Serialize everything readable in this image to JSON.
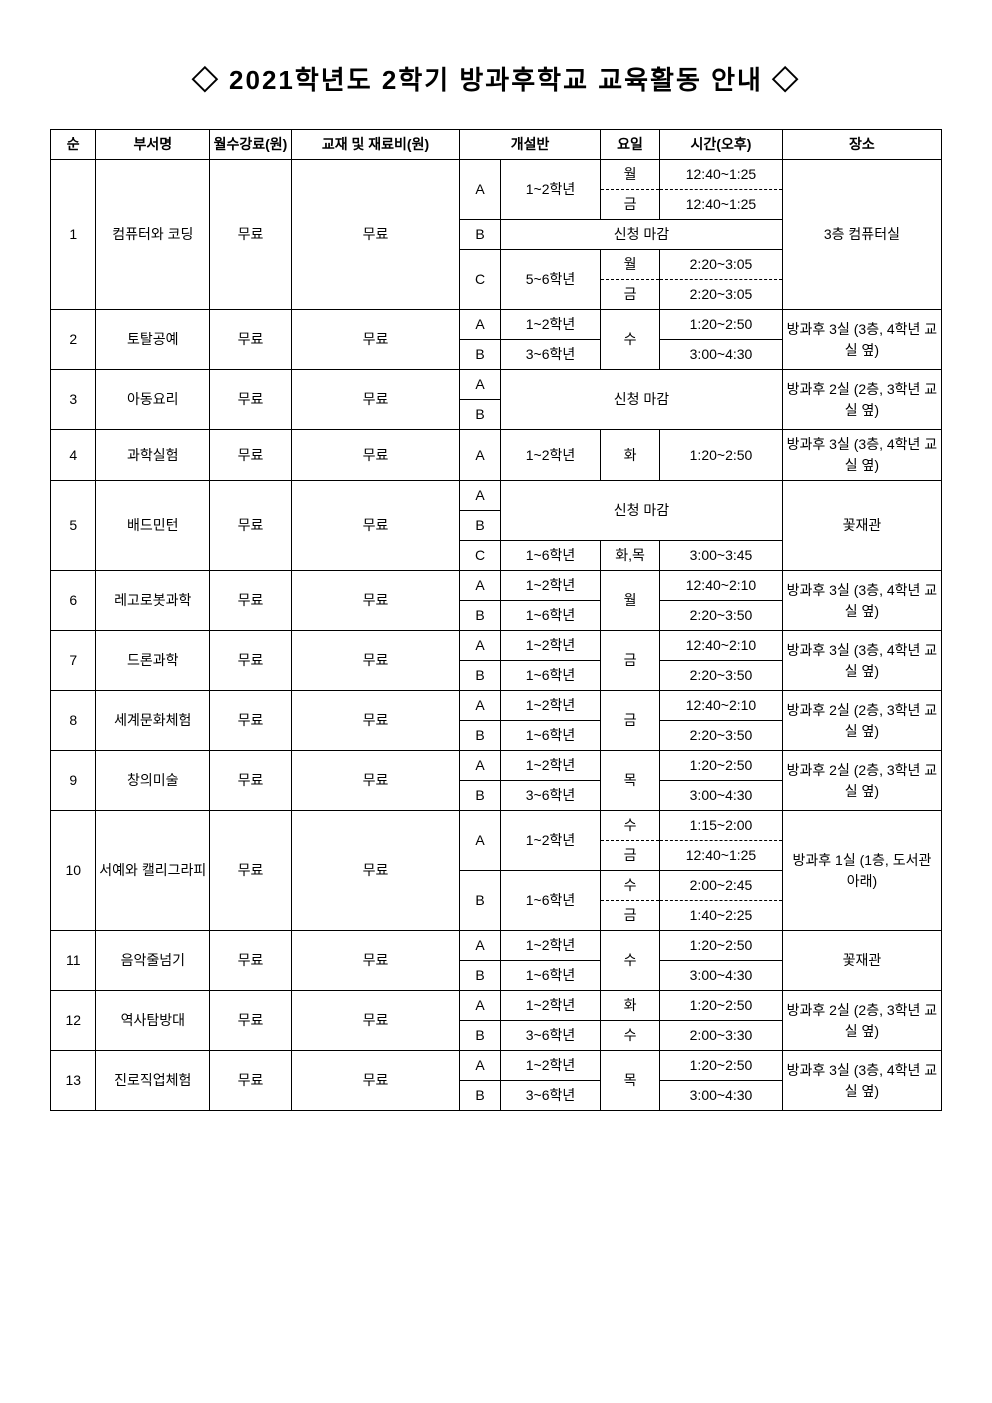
{
  "title": "◇ 2021학년도 2학기 방과후학교 교육활동 안내 ◇",
  "headers": {
    "num": "순",
    "dept": "부서명",
    "monthly_fee": "월수강료(원)",
    "material_fee": "교재 및 재료비(원)",
    "class_open": "개설반",
    "day": "요일",
    "time_pm": "시간(오후)",
    "place": "장소"
  },
  "free": "무료",
  "closed": "신청 마감",
  "rows": {
    "r1": {
      "num": "1",
      "name": "컴퓨터와\n코딩",
      "place": "3층 컴퓨터실",
      "A": "A",
      "A_grade": "1~2학년",
      "A_d1": "월",
      "A_t1": "12:40~1:25",
      "A_d2": "금",
      "A_t2": "12:40~1:25",
      "B": "B",
      "C": "C",
      "C_grade": "5~6학년",
      "C_d1": "월",
      "C_t1": "2:20~3:05",
      "C_d2": "금",
      "C_t2": "2:20~3:05"
    },
    "r2": {
      "num": "2",
      "name": "토탈공예",
      "place": "방과후 3실\n(3층, 4학년\n교실 옆)",
      "A": "A",
      "A_grade": "1~2학년",
      "day": "수",
      "A_time": "1:20~2:50",
      "B": "B",
      "B_grade": "3~6학년",
      "B_time": "3:00~4:30"
    },
    "r3": {
      "num": "3",
      "name": "아동요리",
      "place": "방과후 2실\n(2층, 3학년\n교실 옆)",
      "A": "A",
      "B": "B"
    },
    "r4": {
      "num": "4",
      "name": "과학실험",
      "place": "방과후 3실\n(3층, 4학년\n교실 옆)",
      "A": "A",
      "A_grade": "1~2학년",
      "A_day": "화",
      "A_time": "1:20~2:50"
    },
    "r5": {
      "num": "5",
      "name": "배드민턴",
      "place": "꽃재관",
      "A": "A",
      "B": "B",
      "C": "C",
      "C_grade": "1~6학년",
      "C_day": "화,목",
      "C_time": "3:00~3:45"
    },
    "r6": {
      "num": "6",
      "name": "레고로봇과학",
      "place": "방과후 3실\n(3층, 4학년\n교실 옆)",
      "A": "A",
      "A_grade": "1~2학년",
      "day": "월",
      "A_time": "12:40~2:10",
      "B": "B",
      "B_grade": "1~6학년",
      "B_time": "2:20~3:50"
    },
    "r7": {
      "num": "7",
      "name": "드론과학",
      "place": "방과후 3실\n(3층, 4학년\n교실 옆)",
      "A": "A",
      "A_grade": "1~2학년",
      "day": "금",
      "A_time": "12:40~2:10",
      "B": "B",
      "B_grade": "1~6학년",
      "B_time": "2:20~3:50"
    },
    "r8": {
      "num": "8",
      "name": "세계문화체험",
      "place": "방과후 2실\n(2층, 3학년\n교실 옆)",
      "A": "A",
      "A_grade": "1~2학년",
      "day": "금",
      "A_time": "12:40~2:10",
      "B": "B",
      "B_grade": "1~6학년",
      "B_time": "2:20~3:50"
    },
    "r9": {
      "num": "9",
      "name": "창의미술",
      "place": "방과후 2실\n(2층, 3학년\n교실 옆)",
      "A": "A",
      "A_grade": "1~2학년",
      "day": "목",
      "A_time": "1:20~2:50",
      "B": "B",
      "B_grade": "3~6학년",
      "B_time": "3:00~4:30"
    },
    "r10": {
      "num": "10",
      "name": "서예와\n캘리그라피",
      "place": "방과후 1실\n(1층, 도서관\n아래)",
      "A": "A",
      "A_grade": "1~2학년",
      "A_d1": "수",
      "A_t1": "1:15~2:00",
      "A_d2": "금",
      "A_t2": "12:40~1:25",
      "B": "B",
      "B_grade": "1~6학년",
      "B_d1": "수",
      "B_t1": "2:00~2:45",
      "B_d2": "금",
      "B_t2": "1:40~2:25"
    },
    "r11": {
      "num": "11",
      "name": "음악줄넘기",
      "place": "꽃재관",
      "A": "A",
      "A_grade": "1~2학년",
      "day": "수",
      "A_time": "1:20~2:50",
      "B": "B",
      "B_grade": "1~6학년",
      "B_time": "3:00~4:30"
    },
    "r12": {
      "num": "12",
      "name": "역사탐방대",
      "place": "방과후 2실\n(2층, 3학년\n교실 옆)",
      "A": "A",
      "A_grade": "1~2학년",
      "A_day": "화",
      "A_time": "1:20~2:50",
      "B": "B",
      "B_grade": "3~6학년",
      "B_day": "수",
      "B_time": "2:00~3:30"
    },
    "r13": {
      "num": "13",
      "name": "진로직업체험",
      "place": "방과후 3실\n(3층, 4학년\n교실 옆)",
      "A": "A",
      "A_grade": "1~2학년",
      "day": "목",
      "A_time": "1:20~2:50",
      "B": "B",
      "B_grade": "3~6학년",
      "B_time": "3:00~4:30"
    }
  }
}
